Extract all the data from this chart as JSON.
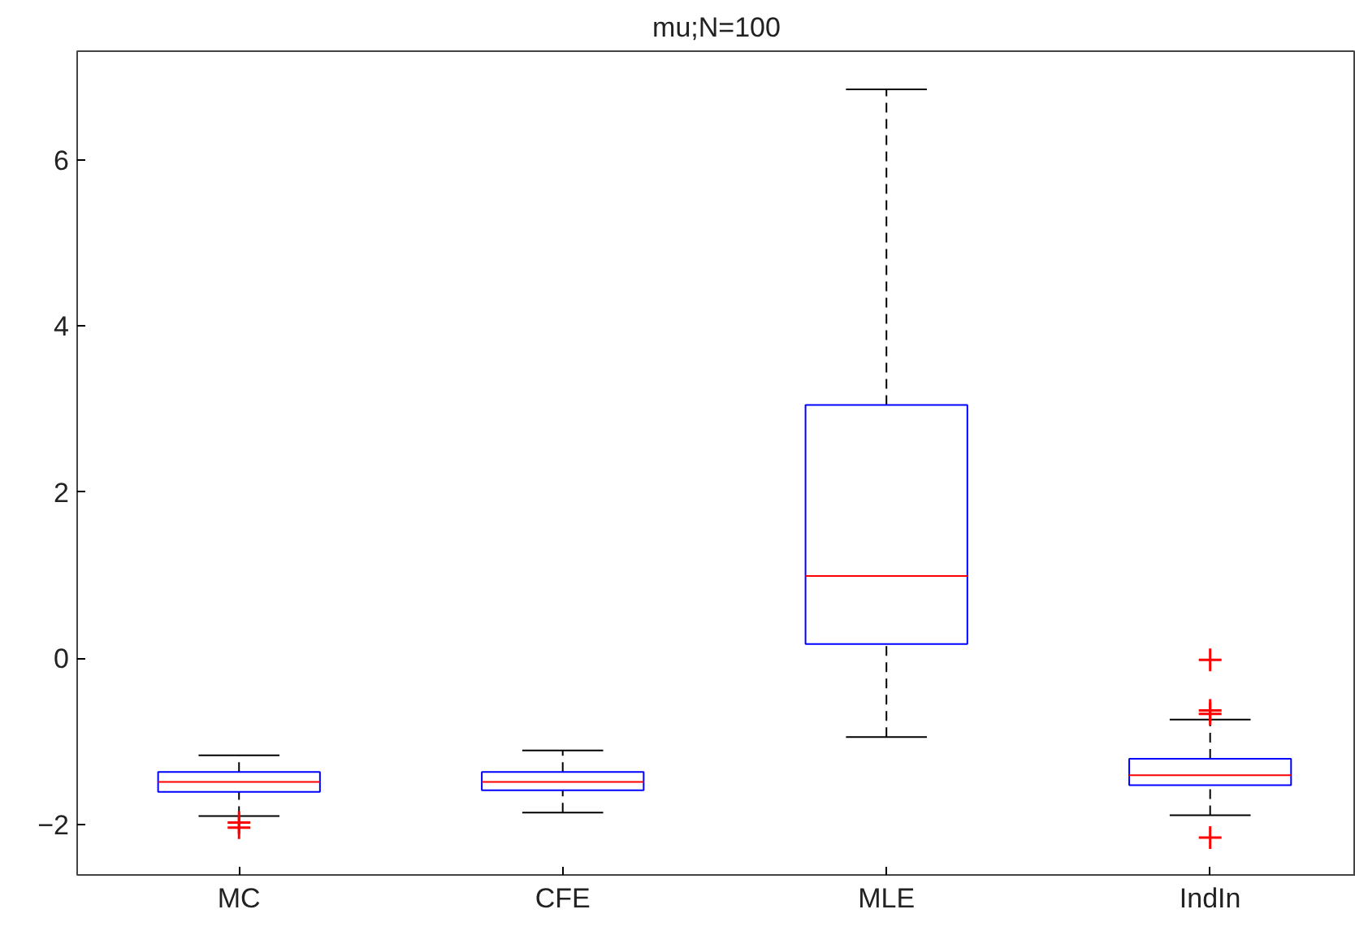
{
  "chart_data": {
    "type": "box",
    "title": "mu;N=100",
    "categories": [
      "MC",
      "CFE",
      "MLE",
      "IndIn"
    ],
    "series": [
      {
        "color": "#0000ff",
        "boxes": [
          {
            "low": -1.9,
            "q1": -1.61,
            "median": -1.49,
            "q3": -1.37,
            "high": -1.17,
            "outliers": [
              -1.98,
              -2.04
            ]
          },
          {
            "low": -1.86,
            "q1": -1.59,
            "median": -1.49,
            "q3": -1.37,
            "high": -1.11
          },
          {
            "low": -0.95,
            "q1": 0.17,
            "median": 0.99,
            "q3": 3.05,
            "high": 6.85
          },
          {
            "low": -1.89,
            "q1": -1.53,
            "median": -1.41,
            "q3": -1.21,
            "high": -0.74,
            "outliers": [
              -0.02,
              -0.63,
              -0.67,
              -2.16
            ]
          }
        ]
      }
    ],
    "ylim": [
      -2.61,
      7.31
    ],
    "yticks": [
      -2,
      0,
      2,
      4,
      6
    ],
    "grid": false
  }
}
